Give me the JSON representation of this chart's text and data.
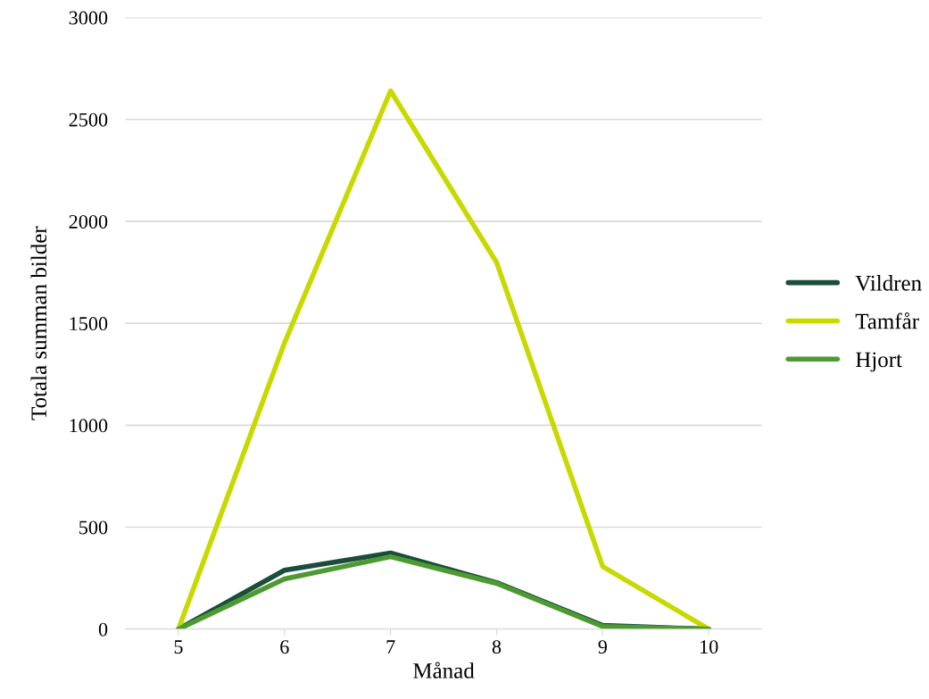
{
  "chart_data": {
    "type": "line",
    "xlabel": "Månad",
    "ylabel": "Totala summan bilder",
    "categories": [
      "5",
      "6",
      "7",
      "8",
      "9",
      "10"
    ],
    "series": [
      {
        "name": "Vildren",
        "color": "#1a4d3a",
        "values": [
          0,
          289,
          373,
          228,
          18,
          0
        ]
      },
      {
        "name": "Tamfår",
        "color": "#c8d900",
        "values": [
          0,
          1404,
          2640,
          1798,
          307,
          0
        ]
      },
      {
        "name": "Hjort",
        "color": "#4e9a32",
        "values": [
          0,
          246,
          355,
          224,
          13,
          0
        ]
      }
    ],
    "ylim": [
      0,
      3000
    ],
    "yticks": [
      0,
      500,
      1000,
      1500,
      2000,
      2500,
      3000
    ],
    "grid": "y",
    "legend": "right",
    "marker": "none",
    "line_style": "solid"
  }
}
